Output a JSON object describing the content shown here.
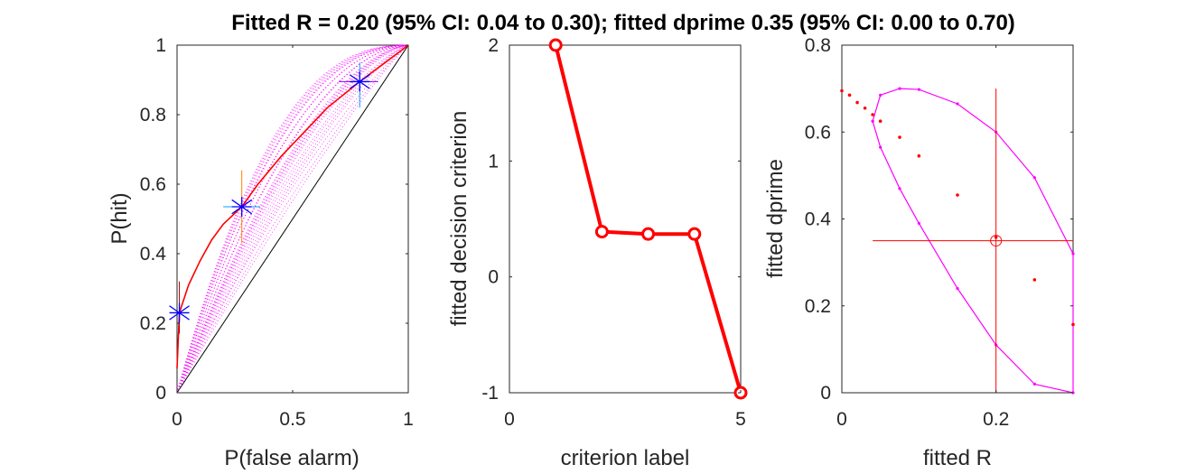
{
  "figure": {
    "title": "Fitted R = 0.20 (95% CI: 0.04 to 0.30); fitted dprime 0.35 (95% CI: 0.00 to 0.70)"
  },
  "chart_data": [
    {
      "type": "line",
      "subtype": "roc",
      "xlabel": "P(false alarm)",
      "ylabel": "P(hit)",
      "xlim": [
        0,
        1
      ],
      "ylim": [
        0,
        1
      ],
      "xticks": [
        "0",
        "0.5",
        "1"
      ],
      "yticks": [
        "0",
        "0.2",
        "0.4",
        "0.6",
        "0.8",
        "1"
      ],
      "grid": false,
      "points": [
        {
          "x": 0.01,
          "y": 0.23,
          "x_err": [
            0.0,
            0.05
          ],
          "y_err": [
            0.17,
            0.32
          ]
        },
        {
          "x": 0.28,
          "y": 0.535,
          "x_err": [
            0.2,
            0.36
          ],
          "y_err": [
            0.43,
            0.64
          ]
        },
        {
          "x": 0.79,
          "y": 0.895,
          "x_err": [
            0.7,
            0.87
          ],
          "y_err": [
            0.82,
            0.95
          ]
        }
      ],
      "fitted_R": 0.2,
      "fitted_dprime": 0.35,
      "bootstrap_R": [
        0.04,
        0.08,
        0.12,
        0.16,
        0.22,
        0.26,
        0.3
      ],
      "bootstrap_dprime": [
        0.7,
        0.6,
        0.5,
        0.4,
        0.3,
        0.25,
        0.15,
        0.05
      ],
      "colors": {
        "fit": "#ff0000",
        "bootstrap": "#ff00ff",
        "chance": "#000000",
        "points": "#0000ff"
      }
    },
    {
      "type": "line",
      "xlabel": "criterion label",
      "ylabel": "fitted decision criterion",
      "xlim": [
        0,
        5
      ],
      "ylim": [
        -1,
        2
      ],
      "xticks": [
        "0",
        "5"
      ],
      "yticks": [
        "-1",
        "0",
        "1",
        "2"
      ],
      "grid": false,
      "x": [
        1,
        2,
        3,
        4,
        5
      ],
      "values": [
        2.0,
        0.39,
        0.37,
        0.37,
        -1.0
      ],
      "color": "#ff0000"
    },
    {
      "type": "scatter",
      "xlabel": "fitted R",
      "ylabel": "fitted dprime",
      "xlim": [
        0,
        0.3
      ],
      "ylim": [
        0,
        0.8
      ],
      "xticks": [
        "0",
        "0.2"
      ],
      "yticks": [
        "0",
        "0.2",
        "0.4",
        "0.6",
        "0.8"
      ],
      "grid": false,
      "likelihood_points": [
        {
          "x": 0.0,
          "y": 0.695
        },
        {
          "x": 0.01,
          "y": 0.685
        },
        {
          "x": 0.02,
          "y": 0.668
        },
        {
          "x": 0.03,
          "y": 0.655
        },
        {
          "x": 0.04,
          "y": 0.64
        },
        {
          "x": 0.05,
          "y": 0.625
        },
        {
          "x": 0.075,
          "y": 0.588
        },
        {
          "x": 0.1,
          "y": 0.545
        },
        {
          "x": 0.15,
          "y": 0.455
        },
        {
          "x": 0.2,
          "y": 0.358
        },
        {
          "x": 0.25,
          "y": 0.26
        },
        {
          "x": 0.3,
          "y": 0.157
        }
      ],
      "contour": [
        {
          "x": 0.04,
          "y": 0.625
        },
        {
          "x": 0.05,
          "y": 0.685
        },
        {
          "x": 0.075,
          "y": 0.7
        },
        {
          "x": 0.1,
          "y": 0.698
        },
        {
          "x": 0.15,
          "y": 0.665
        },
        {
          "x": 0.2,
          "y": 0.6
        },
        {
          "x": 0.25,
          "y": 0.495
        },
        {
          "x": 0.3,
          "y": 0.32
        },
        {
          "x": 0.3,
          "y": 0.0
        },
        {
          "x": 0.25,
          "y": 0.02
        },
        {
          "x": 0.2,
          "y": 0.11
        },
        {
          "x": 0.15,
          "y": 0.24
        },
        {
          "x": 0.1,
          "y": 0.39
        },
        {
          "x": 0.075,
          "y": 0.47
        },
        {
          "x": 0.05,
          "y": 0.565
        },
        {
          "x": 0.04,
          "y": 0.625
        }
      ],
      "estimate": {
        "x": 0.2,
        "y": 0.35
      },
      "ci_R": [
        0.04,
        0.3
      ],
      "ci_dprime": [
        0.0,
        0.7
      ],
      "colors": {
        "contour": "#ff00ff",
        "points": "#ff0000",
        "estimate": "#ff0000"
      }
    }
  ]
}
